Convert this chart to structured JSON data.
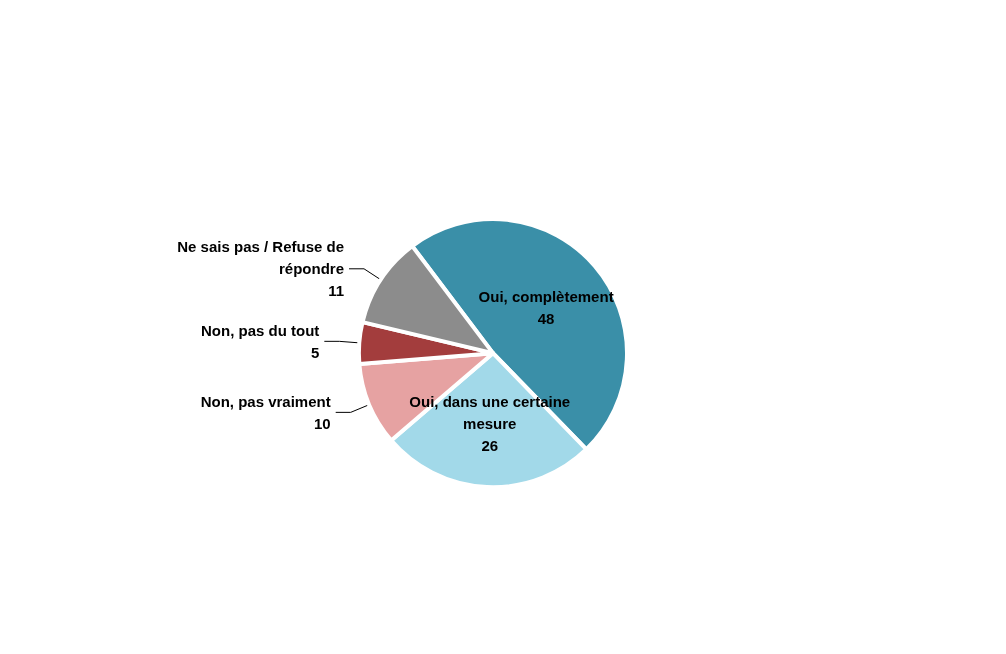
{
  "chart_data": {
    "type": "pie",
    "categories": [
      "Oui, complètement",
      "Oui, dans une certaine mesure",
      "Non, pas vraiment",
      "Non, pas du tout",
      "Ne sais pas / Refuse de répondre"
    ],
    "values": [
      48,
      26,
      10,
      5,
      11
    ],
    "colors": [
      "#3a8fa8",
      "#a2d9e9",
      "#e6a2a2",
      "#a33d3d",
      "#8c8c8c"
    ],
    "data_labels": true
  }
}
